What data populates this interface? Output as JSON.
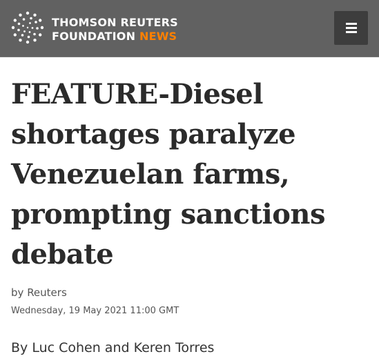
{
  "header": {
    "brand_line1": "THOMSON REUTERS",
    "brand_line2": "FOUNDATION",
    "brand_news": "NEWS",
    "menu_icon": "hamburger-menu-icon",
    "logo_icon": "dotted-circle-logo-icon",
    "colors": {
      "background": "#616161",
      "accent": "#ff8000",
      "menu_button": "#3d3d3d"
    }
  },
  "article": {
    "title": "FEATURE-Diesel shortages paralyze Venezuelan farms, prompting sanctions debate",
    "source_prefix": "by",
    "source": "Reuters",
    "date": "Wednesday, 19 May 2021 11:00 GMT",
    "authors": "By Luc Cohen and Keren Torres"
  }
}
